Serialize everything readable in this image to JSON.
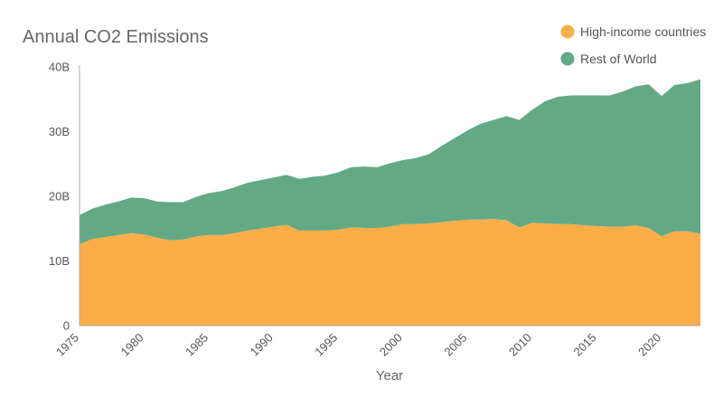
{
  "chart_data": {
    "type": "area",
    "stacked": true,
    "title": "Annual CO2 Emissions",
    "xlabel": "Year",
    "ylabel": "",
    "xlim": [
      1975,
      2023
    ],
    "ylim": [
      0,
      40000000000
    ],
    "y_ticks": [
      0,
      10000000000,
      20000000000,
      30000000000,
      40000000000
    ],
    "y_tick_labels": [
      "0",
      "10B",
      "20B",
      "30B",
      "40B"
    ],
    "x_ticks": [
      1975,
      1980,
      1985,
      1990,
      1995,
      2000,
      2005,
      2010,
      2015,
      2020
    ],
    "x_tick_labels": [
      "1975",
      "1980",
      "1985",
      "1990",
      "1995",
      "2000",
      "2005",
      "2010",
      "2015",
      "2020"
    ],
    "grid": false,
    "legend_position": "top-right",
    "x": [
      1975,
      1976,
      1977,
      1978,
      1979,
      1980,
      1981,
      1982,
      1983,
      1984,
      1985,
      1986,
      1987,
      1988,
      1989,
      1990,
      1991,
      1992,
      1993,
      1994,
      1995,
      1996,
      1997,
      1998,
      1999,
      2000,
      2001,
      2002,
      2003,
      2004,
      2005,
      2006,
      2007,
      2008,
      2009,
      2010,
      2011,
      2012,
      2013,
      2014,
      2015,
      2016,
      2017,
      2018,
      2019,
      2020,
      2021,
      2022,
      2023
    ],
    "series": [
      {
        "name": "High-income countries",
        "color": "#fbae48",
        "values": [
          12600000000,
          13400000000,
          13700000000,
          14000000000,
          14300000000,
          14100000000,
          13600000000,
          13200000000,
          13300000000,
          13800000000,
          14000000000,
          14000000000,
          14300000000,
          14700000000,
          15000000000,
          15300000000,
          15600000000,
          14700000000,
          14700000000,
          14700000000,
          14800000000,
          15200000000,
          15100000000,
          15100000000,
          15300000000,
          15700000000,
          15700000000,
          15800000000,
          16000000000,
          16200000000,
          16400000000,
          16400000000,
          16500000000,
          16300000000,
          15200000000,
          15900000000,
          15800000000,
          15700000000,
          15700000000,
          15500000000,
          15400000000,
          15300000000,
          15300000000,
          15500000000,
          15100000000,
          13800000000,
          14600000000,
          14600000000,
          14200000000
        ]
      },
      {
        "name": "Rest of World",
        "color": "#63a986",
        "values": [
          4500000000,
          4700000000,
          5000000000,
          5200000000,
          5500000000,
          5600000000,
          5600000000,
          5900000000,
          5800000000,
          6100000000,
          6500000000,
          6800000000,
          7100000000,
          7400000000,
          7500000000,
          7600000000,
          7700000000,
          8000000000,
          8300000000,
          8500000000,
          8900000000,
          9300000000,
          9500000000,
          9400000000,
          9800000000,
          9900000000,
          10200000000,
          10700000000,
          11800000000,
          12800000000,
          13800000000,
          14800000000,
          15300000000,
          16100000000,
          16600000000,
          17500000000,
          18900000000,
          19700000000,
          19900000000,
          20100000000,
          20200000000,
          20300000000,
          20900000000,
          21500000000,
          22200000000,
          21700000000,
          22600000000,
          22900000000,
          23900000000
        ]
      }
    ]
  }
}
